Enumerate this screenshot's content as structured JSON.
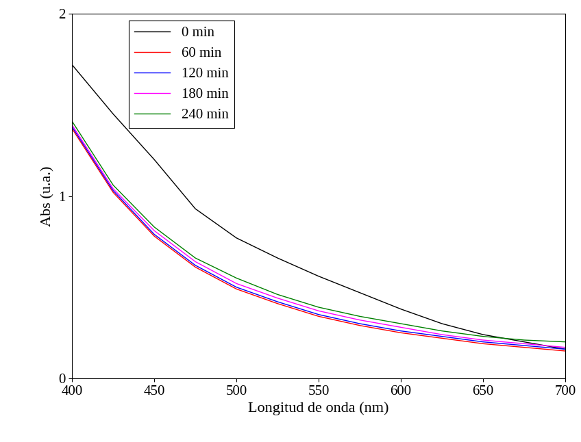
{
  "chart_data": {
    "type": "line",
    "x_label": "Longitud de onda (nm)",
    "y_label": "Abs (u.a.)",
    "x": [
      400,
      425,
      450,
      475,
      500,
      525,
      550,
      575,
      600,
      625,
      650,
      675,
      700
    ],
    "series": [
      {
        "name": "0 min",
        "color": "#000000",
        "values": [
          1.72,
          1.45,
          1.2,
          0.93,
          0.77,
          0.66,
          0.56,
          0.47,
          0.38,
          0.3,
          0.24,
          0.2,
          0.16
        ]
      },
      {
        "name": "60 min",
        "color": "#ff0000",
        "values": [
          1.37,
          1.02,
          0.78,
          0.61,
          0.49,
          0.41,
          0.34,
          0.29,
          0.25,
          0.22,
          0.19,
          0.17,
          0.15
        ]
      },
      {
        "name": "120 min",
        "color": "#0000ff",
        "values": [
          1.38,
          1.03,
          0.79,
          0.62,
          0.5,
          0.42,
          0.35,
          0.3,
          0.26,
          0.23,
          0.2,
          0.18,
          0.16
        ]
      },
      {
        "name": "180 min",
        "color": "#ff00ff",
        "values": [
          1.39,
          1.04,
          0.81,
          0.64,
          0.52,
          0.44,
          0.37,
          0.32,
          0.28,
          0.24,
          0.21,
          0.19,
          0.17
        ]
      },
      {
        "name": "240 min",
        "color": "#008000",
        "values": [
          1.41,
          1.06,
          0.83,
          0.66,
          0.55,
          0.46,
          0.39,
          0.34,
          0.3,
          0.26,
          0.23,
          0.21,
          0.2
        ]
      }
    ],
    "xlim": [
      400,
      700
    ],
    "xticks": [
      400,
      450,
      500,
      550,
      600,
      650,
      700
    ],
    "ylim": [
      0,
      2
    ],
    "yticks": [
      0,
      1,
      2
    ],
    "grid": false,
    "legend": "upper left"
  }
}
